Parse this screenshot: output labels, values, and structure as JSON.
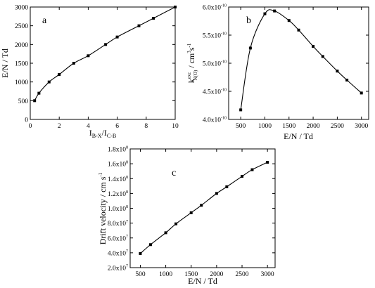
{
  "chart_data": [
    {
      "type": "line",
      "panel_label": "a",
      "x": [
        0.3,
        0.6,
        1.3,
        2.0,
        3.0,
        4.0,
        5.2,
        6.0,
        7.5,
        8.5,
        10.0
      ],
      "series": [
        {
          "values": [
            500,
            700,
            1000,
            1200,
            1500,
            1700,
            2000,
            2200,
            2500,
            2700,
            3000
          ]
        }
      ],
      "xlabel": "I_B-X / I_C-B",
      "xlabel_main1": "I",
      "xlabel_sub1": "B-X",
      "xlabel_main2": "/I",
      "xlabel_sub2": "C-B",
      "ylabel": "E/N / Td",
      "xlim": [
        0,
        10
      ],
      "ylim": [
        0,
        3000
      ],
      "xticks": [
        "0",
        "2",
        "4",
        "6",
        "8",
        "10"
      ],
      "yticks": [
        "0",
        "500",
        "1000",
        "1500",
        "2000",
        "2500",
        "3000"
      ],
      "grid": false,
      "marker": "square",
      "line_color": "#000000"
    },
    {
      "type": "line",
      "panel_label": "b",
      "x": [
        500,
        700,
        1000,
        1200,
        1500,
        1700,
        2000,
        2200,
        2500,
        2700,
        3000
      ],
      "series": [
        {
          "values": [
            4.17e-10,
            5.27e-10,
            5.88e-10,
            5.93e-10,
            5.76e-10,
            5.59e-10,
            5.3e-10,
            5.12e-10,
            4.86e-10,
            4.7e-10,
            4.47e-10
          ]
        }
      ],
      "xlabel": "E/N / Td",
      "ylabel": "k^exc_N(O) / cm^3 s^-1",
      "ylabel_k": "k",
      "ylabel_sup": "exc",
      "ylabel_sub": "N(O)",
      "ylabel_rest": " / cm",
      "ylabel_sup2": "3",
      "ylabel_s": "s",
      "ylabel_sup3": "-1",
      "xlim": [
        250,
        3150
      ],
      "ylim": [
        4e-10,
        6e-10
      ],
      "xticks": [
        "500",
        "1000",
        "1500",
        "2000",
        "2500",
        "3000"
      ],
      "yticks_mant": [
        "4.0x10",
        "4.5x10",
        "5.0x10",
        "5.5x10",
        "6.0x10"
      ],
      "yticks_exp": "-10",
      "grid": false,
      "marker": "square",
      "line_color": "#000000"
    },
    {
      "type": "line",
      "panel_label": "c",
      "x": [
        500,
        700,
        1000,
        1200,
        1500,
        1700,
        2000,
        2200,
        2500,
        2700,
        3000
      ],
      "series": [
        {
          "values": [
            39000000.0,
            51000000.0,
            67000000.0,
            79000000.0,
            94000000.0,
            104000000.0,
            120000000.0,
            129000000.0,
            143000000.0,
            152000000.0,
            162000000.0
          ]
        }
      ],
      "xlabel": "E/N / Td",
      "ylabel": "Drift velocity / cm s^-1",
      "ylabel_main": "Drift velocity / cm s",
      "ylabel_sup": "-1",
      "xlim": [
        300,
        3150
      ],
      "ylim": [
        20000000.0,
        180000000.0
      ],
      "xticks": [
        "500",
        "1000",
        "1500",
        "2000",
        "2500",
        "3000"
      ],
      "yticks_mant": [
        "2.0x10",
        "4.0x10",
        "6.0x10",
        "8.0x10",
        "1.0x10",
        "1.2x10",
        "1.4x10",
        "1.6x10",
        "1.8x10"
      ],
      "yticks_exp": [
        "7",
        "7",
        "7",
        "7",
        "8",
        "8",
        "8",
        "8",
        "8"
      ],
      "grid": false,
      "marker": "square",
      "line_color": "#000000"
    }
  ]
}
